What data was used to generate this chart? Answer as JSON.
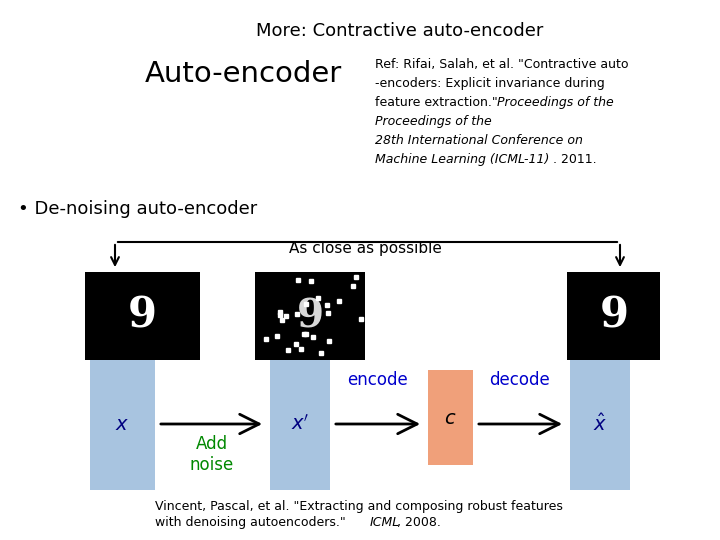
{
  "title": "More: Contractive auto-encoder",
  "autoencoder_label": "Auto-encoder",
  "bullet_text": "• De-noising auto-encoder",
  "ref_line1": "Ref: Rifai, Salah, et al. \"Contractive auto",
  "ref_line2": "-encoders: Explicit invariance during",
  "ref_line3": "feature extraction.\" ",
  "ref_line3b": "Proceedings of the",
  "ref_line4": "28th International Conference on",
  "ref_line5": "Machine Learning (ICML-11)",
  "ref_line5b": ". 2011.",
  "as_close_text": "As close as possible",
  "encode_text": "encode",
  "decode_text": "decode",
  "add_noise_text": "Add\nnoise",
  "add_noise_color": "#008800",
  "vincent_line1a": "Vincent, Pascal, et al. \"Extracting and composing robust features",
  "vincent_line2a": "with denoising autoencoders.\" ",
  "vincent_line2b": "ICML",
  "vincent_line2c": ", 2008.",
  "box_color": "#a8c4e0",
  "orange_color": "#f0a07a",
  "encode_color": "#0000cc",
  "decode_color": "#0000cc"
}
